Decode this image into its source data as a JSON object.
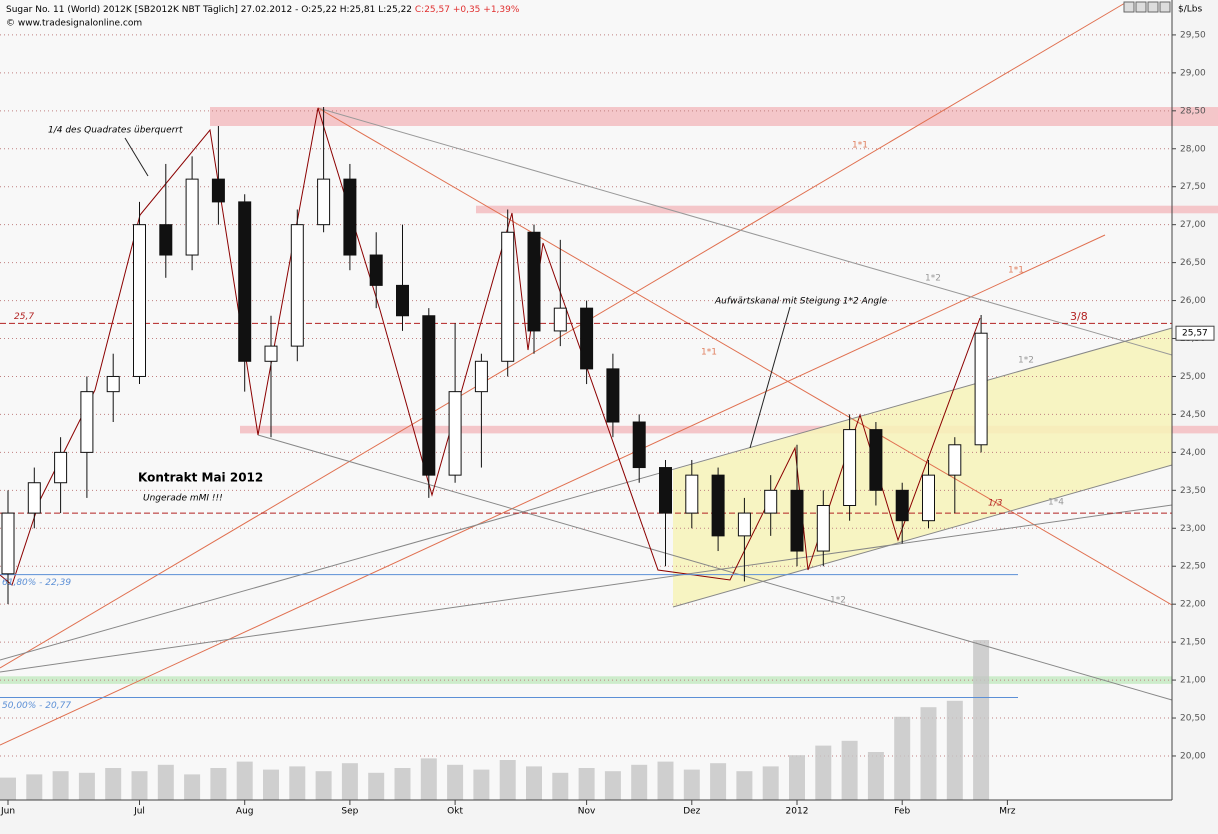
{
  "chart_data": {
    "type": "candlestick",
    "title": "Sugar No. 11 (World) 2012K [SB2012K NBT Täglich] 27.02.2012 - O:25,22 H:25,81 L:25,22 ",
    "title_change": "C:25,57 +0,35 +1,39%",
    "source": "© www.tradesignalonline.com",
    "y_unit": "$/Lbs",
    "categories": [
      "Jun",
      null,
      null,
      null,
      null,
      "Jul",
      null,
      null,
      null,
      "Aug",
      null,
      null,
      null,
      "Sep",
      null,
      null,
      null,
      "Okt",
      null,
      null,
      null,
      null,
      "Nov",
      null,
      null,
      null,
      "Dez",
      null,
      null,
      null,
      "2012",
      null,
      null,
      null,
      "Feb",
      null,
      null,
      null,
      "Mrz"
    ],
    "open": [
      22.4,
      23.2,
      23.6,
      24.0,
      24.8,
      25.0,
      27.0,
      26.6,
      27.6,
      27.3,
      25.2,
      25.4,
      27.0,
      27.6,
      26.6,
      26.2,
      25.8,
      23.7,
      24.8,
      25.2,
      26.9,
      25.6,
      25.9,
      25.1,
      24.4,
      23.8,
      23.2,
      23.7,
      22.9,
      23.2,
      23.5,
      22.7,
      23.3,
      24.3,
      23.5,
      23.1,
      23.7,
      24.1,
      null
    ],
    "high": [
      23.5,
      23.8,
      24.2,
      25.0,
      25.3,
      27.3,
      27.8,
      27.9,
      28.3,
      27.4,
      25.8,
      27.2,
      28.55,
      27.8,
      26.9,
      27.0,
      25.9,
      25.7,
      25.3,
      27.2,
      27.0,
      26.8,
      26.0,
      25.3,
      24.5,
      23.9,
      23.9,
      23.8,
      23.4,
      23.7,
      24.1,
      23.5,
      24.5,
      24.4,
      23.6,
      23.9,
      24.2,
      25.81,
      null
    ],
    "low": [
      22.0,
      23.0,
      23.2,
      23.4,
      24.4,
      24.9,
      26.3,
      26.4,
      27.0,
      24.8,
      24.2,
      25.2,
      26.9,
      26.4,
      25.9,
      25.6,
      23.4,
      23.6,
      23.8,
      25.0,
      25.3,
      25.4,
      24.9,
      24.2,
      23.6,
      22.5,
      23.0,
      22.7,
      22.3,
      22.9,
      22.5,
      22.5,
      23.1,
      23.3,
      22.8,
      23.0,
      23.2,
      24.0,
      null
    ],
    "close": [
      23.2,
      23.6,
      24.0,
      24.8,
      25.0,
      27.0,
      26.6,
      27.6,
      27.3,
      25.2,
      25.4,
      27.0,
      27.6,
      26.6,
      26.2,
      25.8,
      23.7,
      24.8,
      25.2,
      26.9,
      25.6,
      25.9,
      25.1,
      24.4,
      23.8,
      23.2,
      23.7,
      22.9,
      23.2,
      23.5,
      22.7,
      23.3,
      24.3,
      23.5,
      23.1,
      23.7,
      24.1,
      25.57,
      null
    ],
    "volume": {
      "axis": "y2",
      "color": "#c4c4c4",
      "values": [
        14,
        16,
        18,
        17,
        20,
        18,
        22,
        16,
        20,
        24,
        19,
        21,
        18,
        23,
        17,
        20,
        26,
        22,
        19,
        25,
        21,
        17,
        20,
        18,
        22,
        24,
        19,
        23,
        18,
        21,
        28,
        34,
        37,
        30,
        52,
        58,
        62,
        100,
        null
      ]
    },
    "ylim": [
      19.42,
      29.96
    ],
    "y2lim": [
      0,
      100
    ],
    "yticks": [
      {
        "value": 20,
        "label": "20,00"
      },
      {
        "value": 20.5,
        "label": "20,50"
      },
      {
        "value": 21,
        "label": "21,00"
      },
      {
        "value": 21.5,
        "label": "21,50"
      },
      {
        "value": 22,
        "label": "22,00"
      },
      {
        "value": 22.5,
        "label": "22,50"
      },
      {
        "value": 23,
        "label": "23,00"
      },
      {
        "value": 23.5,
        "label": "23,50"
      },
      {
        "value": 24,
        "label": "24,00"
      },
      {
        "value": 24.5,
        "label": "24,50"
      },
      {
        "value": 25,
        "label": "25,00"
      },
      {
        "value": 25.5,
        "label": "25,50"
      },
      {
        "value": 26,
        "label": "26,00"
      },
      {
        "value": 26.5,
        "label": "26,50"
      },
      {
        "value": 27,
        "label": "27,00"
      },
      {
        "value": 27.5,
        "label": "27,50"
      },
      {
        "value": 28,
        "label": "28,00"
      },
      {
        "value": 28.5,
        "label": "28,50"
      },
      {
        "value": 29,
        "label": "29,00"
      },
      {
        "value": 29.5,
        "label": "29,50"
      }
    ],
    "grid": true,
    "last_price": {
      "value": 25.57,
      "label": "25,57"
    },
    "levels": [
      {
        "value": 25.7,
        "label": "25,7",
        "color": "#b22222",
        "style": "dashed"
      },
      {
        "value": 23.2,
        "label": "1/3",
        "color": "#b22222",
        "style": "dashed"
      },
      {
        "value": 22.39,
        "label": "61,80% - 22,39",
        "color": "#5b8fd6",
        "style": "solid"
      },
      {
        "value": 20.77,
        "label": "50,00% - 20,77",
        "color": "#5b8fd6",
        "style": "solid"
      }
    ],
    "bands": [
      {
        "range": [
          28.3,
          28.55
        ],
        "color": "#f4c6c9"
      },
      {
        "range": [
          27.15,
          27.25
        ],
        "color": "#f4c6c9"
      },
      {
        "range": [
          24.25,
          24.35
        ],
        "color": "#f4c6c9"
      },
      {
        "range": [
          20.95,
          21.05
        ],
        "color": "#cdeccb"
      }
    ],
    "annotations": {
      "quadrat": "1/4 des Quadrates überquerrt",
      "kontrakt": "Kontrakt Mai 2012",
      "ungerade": "Ungerade mMI !!!",
      "kanal": "Aufwärtskanal mit Steigung 1*2 Angle",
      "a1": "1*1",
      "a2": "1*2",
      "a3": "1*1",
      "a4": "1*2",
      "a5": "1*1",
      "a6": "1*2",
      "a7": "1*4",
      "a8": "1*2",
      "level38": "3/8"
    }
  }
}
